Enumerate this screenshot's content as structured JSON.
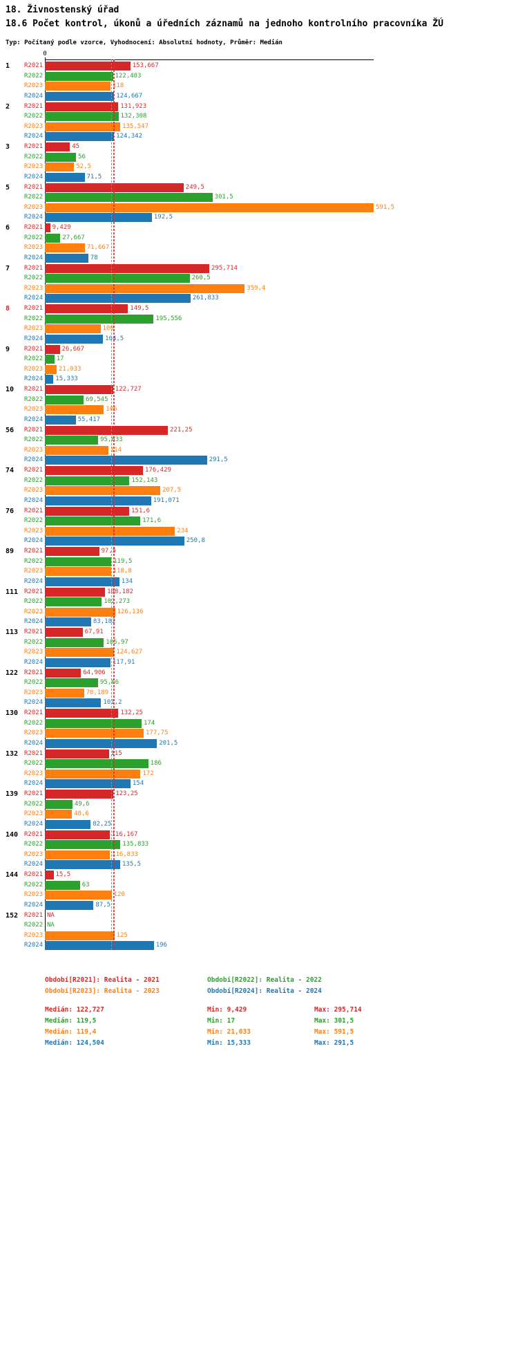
{
  "page": {
    "title": "18. Živnostenský úřad",
    "subtitle": "18.6 Počet kontrol, úkonů a úředních záznamů na jednoho kontrolního pracovníka ŽÚ",
    "type_note": "Typ: Počítaný podle vzorce, Vyhodnocení: Absolutní hodnoty, Průměr: Medián"
  },
  "chart_data": {
    "type": "bar",
    "orientation": "horizontal",
    "title": "18.6 Počet kontrol, úkonů a úředních záznamů na jednoho kontrolního pracovníka ŽÚ",
    "axis_origin_label": "0",
    "xlim": [
      0,
      591.5
    ],
    "grid": false,
    "legend_position": "bottom",
    "highlight_color": "#d62728",
    "stats_labels": {
      "median": "Medián",
      "min": "Min",
      "max": "Max"
    },
    "series": [
      {
        "name": "R2021",
        "color": "#d62728",
        "legend": "Období[R2021]: Realita - 2021",
        "median": "122,727",
        "min": "9,429",
        "max": "295,714"
      },
      {
        "name": "R2022",
        "color": "#2ca02c",
        "legend": "Období[R2022]: Realita - 2022",
        "median": "119,5",
        "min": "17",
        "max": "301,5"
      },
      {
        "name": "R2023",
        "color": "#ff7f0e",
        "legend": "Období[R2023]: Realita - 2023",
        "median": "119,4",
        "min": "21,033",
        "max": "591,5"
      },
      {
        "name": "R2024",
        "color": "#1f77b4",
        "legend": "Období[R2024]: Realita - 2024",
        "median": "124,504",
        "min": "15,333",
        "max": "291,5"
      }
    ],
    "groups": [
      {
        "label": "1",
        "values": [
          "153,667",
          "122,483",
          "118",
          "124,667"
        ]
      },
      {
        "label": "2",
        "values": [
          "131,923",
          "132,308",
          "135,547",
          "124,342"
        ]
      },
      {
        "label": "3",
        "values": [
          "45",
          "56",
          "52,5",
          "71,5"
        ]
      },
      {
        "label": "5",
        "values": [
          "249,5",
          "301,5",
          "591,5",
          "192,5"
        ]
      },
      {
        "label": "6",
        "values": [
          "9,429",
          "27,667",
          "71,667",
          "78"
        ]
      },
      {
        "label": "7",
        "values": [
          "295,714",
          "260,5",
          "359,4",
          "261,833"
        ]
      },
      {
        "label": "8",
        "highlight": true,
        "values": [
          "149,5",
          "195,556",
          "100",
          "104,5"
        ]
      },
      {
        "label": "9",
        "values": [
          "26,667",
          "17",
          "21,033",
          "15,333"
        ]
      },
      {
        "label": "10",
        "values": [
          "122,727",
          "69,545",
          "106",
          "55,417"
        ]
      },
      {
        "label": "56",
        "values": [
          "221,25",
          "95,833",
          "114",
          "291,5"
        ]
      },
      {
        "label": "74",
        "values": [
          "176,429",
          "152,143",
          "207,5",
          "191,071"
        ]
      },
      {
        "label": "76",
        "values": [
          "151,6",
          "171,6",
          "234",
          "250,8"
        ]
      },
      {
        "label": "89",
        "values": [
          "97,5",
          "119,5",
          "118,8",
          "134"
        ]
      },
      {
        "label": "111",
        "values": [
          "108,182",
          "102,273",
          "126,136",
          "83,182"
        ]
      },
      {
        "label": "113",
        "values": [
          "67,91",
          "105,97",
          "124,627",
          "117,91"
        ]
      },
      {
        "label": "122",
        "values": [
          "64,906",
          "95,66",
          "70,189",
          "101,2"
        ]
      },
      {
        "label": "130",
        "values": [
          "132,25",
          "174",
          "177,75",
          "201,5"
        ]
      },
      {
        "label": "132",
        "values": [
          "115",
          "186",
          "172",
          "154"
        ]
      },
      {
        "label": "139",
        "values": [
          "123,25",
          "49,6",
          "48,6",
          "82,25"
        ]
      },
      {
        "label": "140",
        "values": [
          "116,167",
          "135,833",
          "116,833",
          "135,5"
        ]
      },
      {
        "label": "144",
        "values": [
          "15,5",
          "63",
          "120",
          "87,5"
        ]
      },
      {
        "label": "152",
        "values": [
          "NA",
          "NA",
          "125",
          "196"
        ]
      }
    ]
  }
}
